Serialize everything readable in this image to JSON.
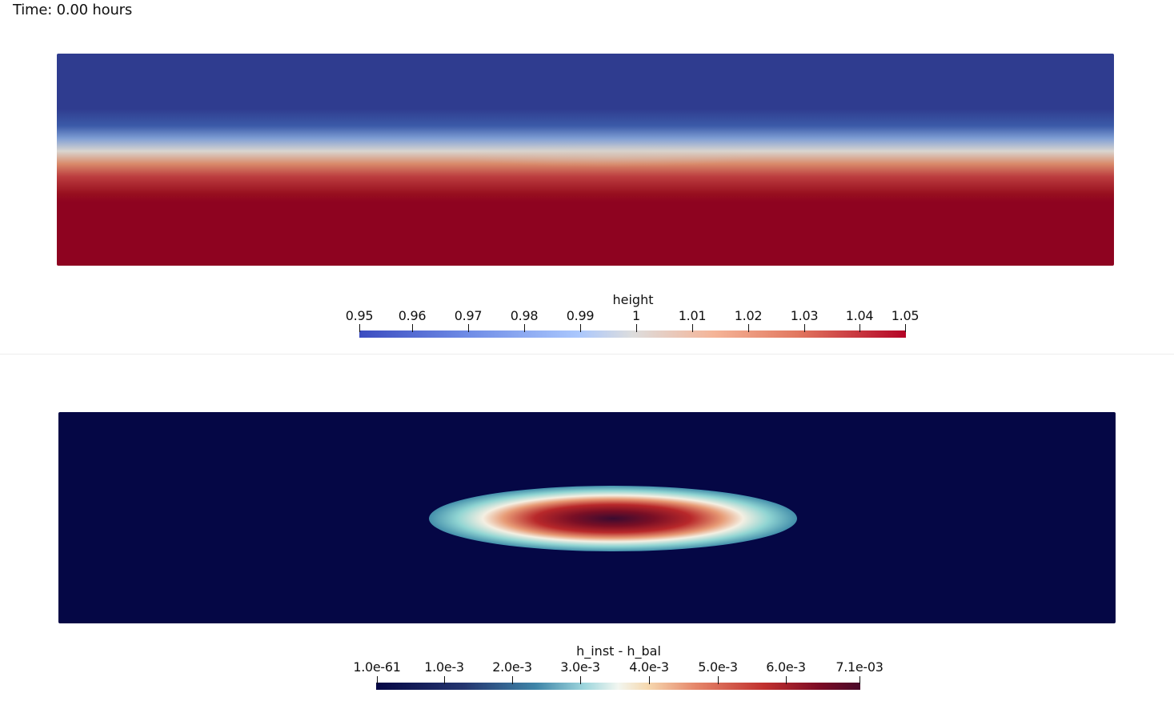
{
  "time_label": "Time: 0.00 hours",
  "top_panel": {
    "colorbar": {
      "title": "height",
      "ticks": [
        "0.95",
        "0.96",
        "0.97",
        "0.98",
        "0.99",
        "1",
        "1.01",
        "1.02",
        "1.03",
        "1.04",
        "1.05"
      ],
      "colormap": [
        "#3b4cc0",
        "#dddddd",
        "#b40426"
      ]
    }
  },
  "bottom_panel": {
    "colorbar": {
      "title": "h_inst - h_bal",
      "ticks": [
        "1.0e-61",
        "1.0e-3",
        "2.0e-3",
        "3.0e-3",
        "4.0e-3",
        "5.0e-3",
        "6.0e-3",
        "7.1e-03"
      ],
      "colormap": [
        "#050745",
        "#f2f6f0",
        "#4a0a2a"
      ]
    }
  }
}
